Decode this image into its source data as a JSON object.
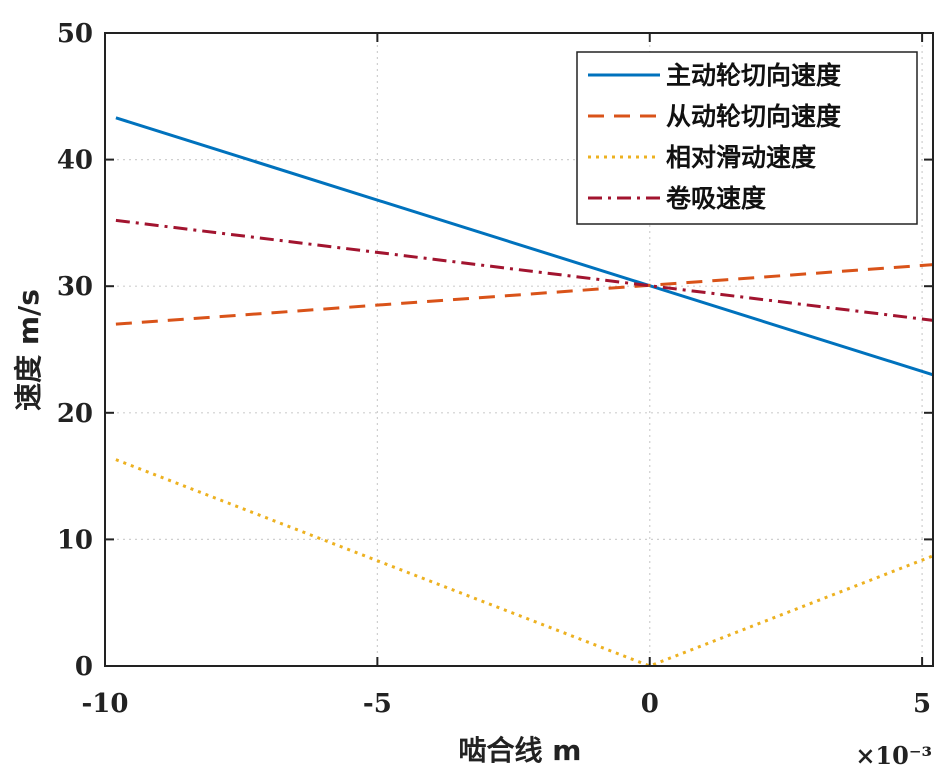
{
  "chart_data": {
    "type": "line",
    "xlabel": "啮合线 m",
    "ylabel": "速度 m/s",
    "x_exponent_label": "×10⁻³",
    "xlim": [
      -10,
      5.2
    ],
    "ylim": [
      0,
      50
    ],
    "xticks": [
      -10,
      -5,
      0,
      5
    ],
    "yticks": [
      0,
      10,
      20,
      30,
      40,
      50
    ],
    "xtick_labels": [
      "-10",
      "-5",
      "0",
      "5"
    ],
    "ytick_labels": [
      "0",
      "10",
      "20",
      "30",
      "40",
      "50"
    ],
    "grid": true,
    "legend_position": "top-right",
    "series": [
      {
        "name": "主动轮切向速度",
        "color": "#0072BD",
        "style": "solid",
        "x": [
          -9.8,
          5.2
        ],
        "y": [
          43.3,
          23.0
        ]
      },
      {
        "name": "从动轮切向速度",
        "color": "#D95319",
        "style": "dashed",
        "x": [
          -9.8,
          5.2
        ],
        "y": [
          27.0,
          31.7
        ]
      },
      {
        "name": "相对滑动速度",
        "color": "#EDB120",
        "style": "dotted",
        "x": [
          -9.8,
          0,
          5.2
        ],
        "y": [
          16.3,
          0,
          8.7
        ]
      },
      {
        "name": "卷吸速度",
        "color": "#A2142F",
        "style": "dashdot",
        "x": [
          -9.8,
          5.2
        ],
        "y": [
          35.2,
          27.3
        ]
      }
    ]
  }
}
